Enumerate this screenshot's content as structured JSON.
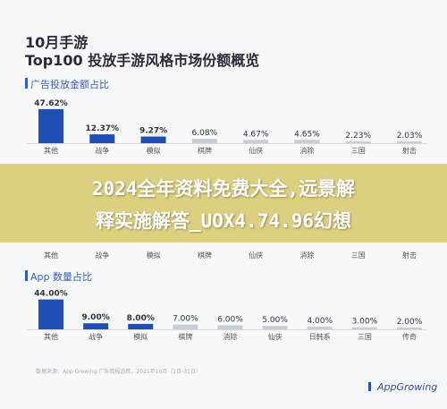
{
  "header": {
    "line1": "10月手游",
    "line2": "Top100 投放手游风格市场份额概览"
  },
  "banner": {
    "line1": "2024全年资料免费大全,远景解",
    "line2": "释实施解答_UOX4.74.96幻想"
  },
  "sections": {
    "ad": {
      "label": "广告投放金额占比"
    },
    "app": {
      "label": "App 数量占比"
    }
  },
  "footer": {
    "note": "数据来源：App Growing 广告情报追踪，2021年10月（1日-31日）",
    "logo": "AppGrowing"
  },
  "colors": {
    "accent": "#1f4fb4",
    "muted": "#c8ccd6",
    "section": "#3a5fb0"
  },
  "chart_data": [
    {
      "type": "bar",
      "title": "广告投放金额占比",
      "categories": [
        "其他",
        "战争",
        "模拟",
        "棋牌",
        "仙侠",
        "消除",
        "三国",
        "射击"
      ],
      "values": [
        47.62,
        12.37,
        9.27,
        6.08,
        4.67,
        4.65,
        2.23,
        2.03
      ],
      "value_labels": [
        "47.62%",
        "12.37%",
        "9.27%",
        "6.08%",
        "4.67%",
        "4.65%",
        "2.23%",
        "2.03%"
      ],
      "highlight_count": 3,
      "ylim": [
        0,
        50
      ]
    },
    {
      "type": "bar",
      "title": "App 数量占比",
      "categories": [
        "其他",
        "战争",
        "模拟",
        "棋牌",
        "消除",
        "仙侠",
        "日韩系",
        "三国",
        "传奇"
      ],
      "values": [
        44.0,
        9.0,
        8.0,
        7.0,
        6.0,
        5.0,
        4.0,
        3.0,
        2.0
      ],
      "value_labels": [
        "44.00%",
        "9.00%",
        "8.00%",
        "7.00%",
        "6.00%",
        "5.00%",
        "4.00%",
        "3.00%",
        "2.00%"
      ],
      "highlight_count": 3,
      "ylim": [
        0,
        50
      ]
    }
  ]
}
